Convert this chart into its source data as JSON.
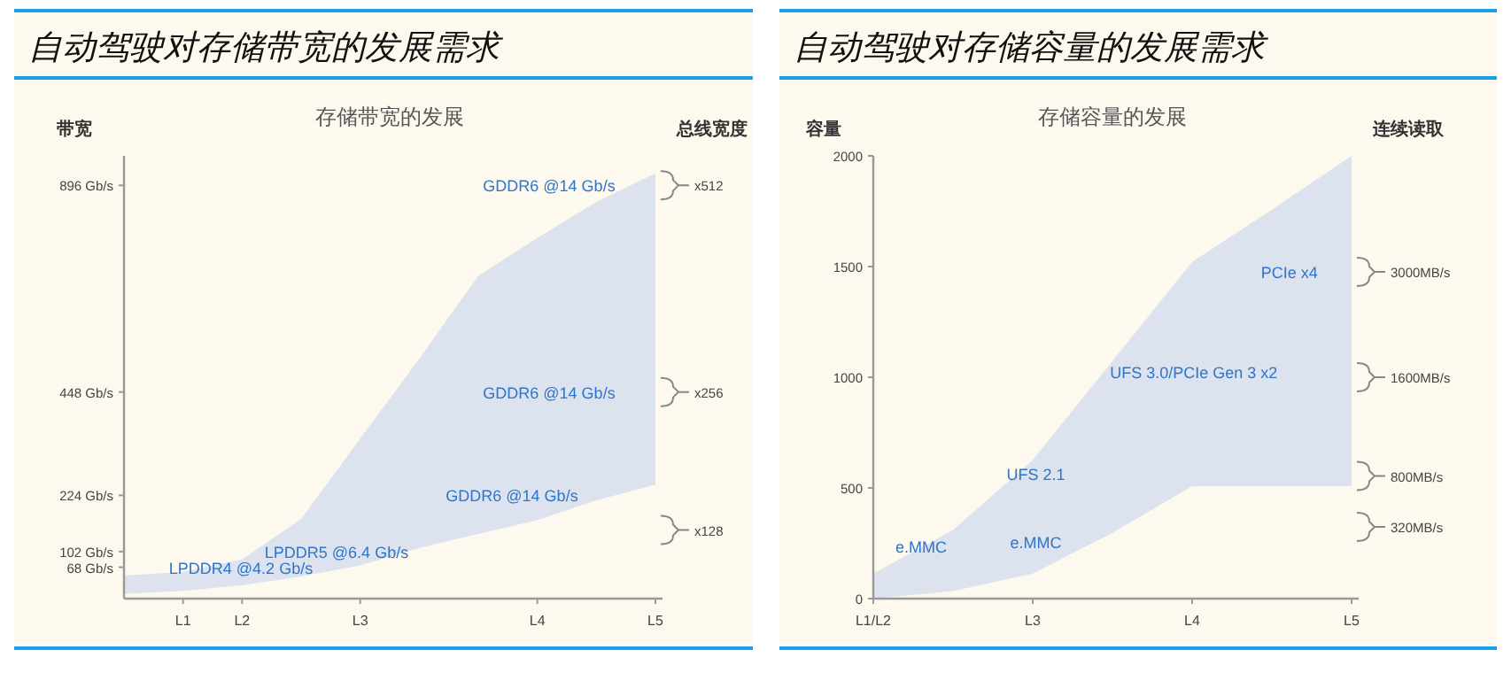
{
  "chart_data": [
    {
      "type": "area",
      "title": "自动驾驶对存储带宽的发展需求",
      "subtitle": "存储带宽的发展",
      "ylabel": "带宽",
      "y2label": "总线宽度",
      "categories": [
        null,
        "L1",
        "L2",
        null,
        "L3",
        null,
        null,
        "L4",
        null,
        "L5"
      ],
      "ylim": [
        0,
        960
      ],
      "yticks": [
        {
          "value": 68,
          "label": "68 Gb/s"
        },
        {
          "value": 102,
          "label": "102 Gb/s"
        },
        {
          "value": 224,
          "label": "224 Gb/s"
        },
        {
          "value": 448,
          "label": "448 Gb/s"
        },
        {
          "value": 896,
          "label": "896 Gb/s"
        }
      ],
      "series": [
        {
          "color": "#dce3ef",
          "values": [
            50,
            58,
            85,
            173,
            347,
            520,
            700,
            782,
            860,
            922
          ]
        },
        {
          "color": "#fdf9ee",
          "values": [
            10,
            17,
            29,
            48,
            72,
            110,
            140,
            170,
            213,
            247
          ]
        }
      ],
      "annotations": [
        "GDDR6 @14 Gb/s",
        "GDDR6 @14 Gb/s",
        "GDDR6 @14 Gb/s",
        "LPDDR5 @6.4 Gb/s",
        "LPDDR4 @4.2 Gb/s",
        "x512",
        "x256",
        "x128"
      ]
    },
    {
      "type": "area",
      "title": "自动驾驶对存储容量的发展需求",
      "subtitle": "存储容量的发展",
      "ylabel": "容量",
      "y2label": "连续读取",
      "categories": [
        "L1/L2",
        null,
        "L3",
        null,
        "L4",
        null,
        "L5"
      ],
      "ylim": [
        0,
        2000
      ],
      "yticks": [
        0,
        500,
        1000,
        1500,
        2000
      ],
      "series": [
        {
          "color": "#dce3ef",
          "values": [
            113,
            310,
            626,
            1073,
            1521,
            1757,
            2000
          ]
        },
        {
          "color": "#fdf9ee",
          "values": [
            0,
            34,
            113,
            297,
            508,
            508,
            508
          ]
        }
      ],
      "annotations": [
        "e.MMC",
        "e.MMC",
        "UFS 2.1",
        "UFS 3.0/PCIe Gen 3 x2",
        "PCIe x4",
        "3000MB/s",
        "1600MB/s",
        "800MB/s",
        "320MB/s"
      ]
    }
  ]
}
